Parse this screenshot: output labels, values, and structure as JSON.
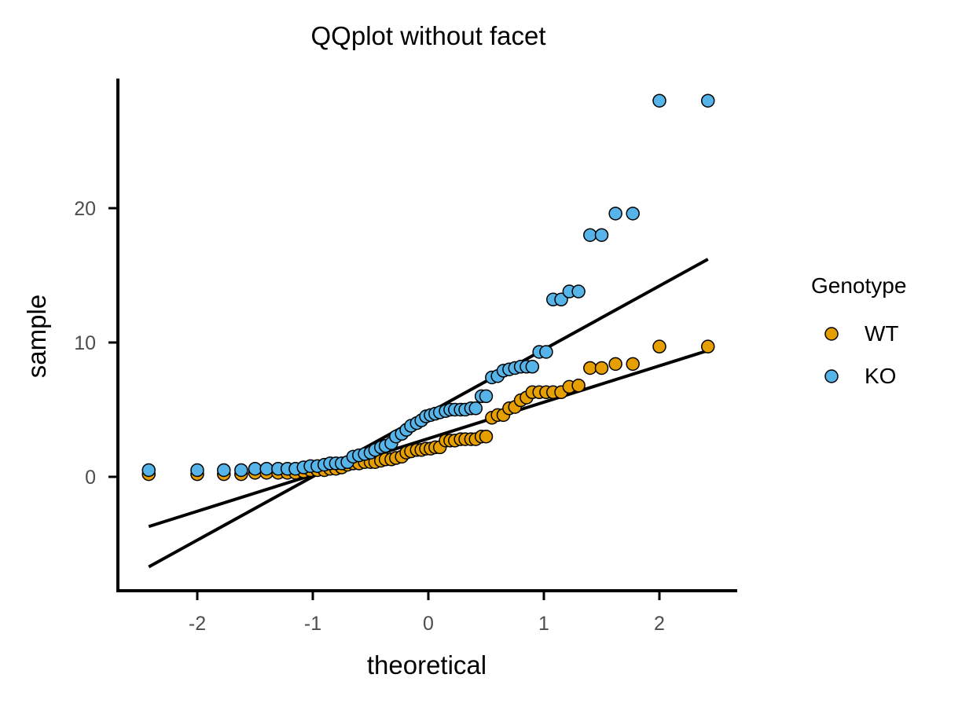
{
  "chart_data": {
    "type": "scatter",
    "title": "QQplot without facet",
    "xlabel": "theoretical",
    "ylabel": "sample",
    "xlim": [
      -2.7,
      2.7
    ],
    "ylim": [
      -8.5,
      29.5
    ],
    "x_ticks": [
      {
        "value": -2,
        "label": "-2"
      },
      {
        "value": -1,
        "label": "-1"
      },
      {
        "value": 0,
        "label": "0"
      },
      {
        "value": 1,
        "label": "1"
      },
      {
        "value": 2,
        "label": "2"
      }
    ],
    "y_ticks": [
      {
        "value": 0,
        "label": "0"
      },
      {
        "value": 10,
        "label": "10"
      },
      {
        "value": 20,
        "label": "20"
      }
    ],
    "grid": false,
    "legend": {
      "title": "Genotype",
      "position": "right"
    },
    "series": [
      {
        "name": "WT",
        "color": "#E69F00",
        "line": {
          "x": [
            -2.42,
            2.42
          ],
          "y": [
            -3.7,
            9.4
          ]
        },
        "x": [
          -2.42,
          -2.0,
          -1.77,
          -1.62,
          -1.5,
          -1.4,
          -1.3,
          -1.22,
          -1.15,
          -1.08,
          -1.02,
          -0.96,
          -0.9,
          -0.85,
          -0.8,
          -0.75,
          -0.7,
          -0.65,
          -0.6,
          -0.55,
          -0.5,
          -0.46,
          -0.41,
          -0.37,
          -0.32,
          -0.28,
          -0.23,
          -0.19,
          -0.15,
          -0.1,
          -0.06,
          -0.02,
          0.02,
          0.06,
          0.1,
          0.15,
          0.19,
          0.23,
          0.28,
          0.32,
          0.37,
          0.41,
          0.46,
          0.5,
          0.55,
          0.6,
          0.65,
          0.7,
          0.75,
          0.8,
          0.85,
          0.9,
          0.96,
          1.02,
          1.08,
          1.15,
          1.22,
          1.3,
          1.4,
          1.5,
          1.62,
          1.77,
          2.0,
          2.42
        ],
        "y": [
          0.2,
          0.2,
          0.2,
          0.2,
          0.3,
          0.3,
          0.3,
          0.3,
          0.3,
          0.4,
          0.5,
          0.5,
          0.5,
          0.6,
          0.6,
          0.7,
          0.9,
          1.0,
          1.0,
          1.1,
          1.1,
          1.1,
          1.2,
          1.3,
          1.3,
          1.4,
          1.5,
          1.8,
          1.9,
          2.0,
          2.0,
          2.1,
          2.1,
          2.2,
          2.2,
          2.7,
          2.7,
          2.7,
          2.8,
          2.8,
          2.8,
          2.8,
          3.0,
          3.0,
          4.4,
          4.6,
          4.6,
          5.1,
          5.2,
          5.7,
          5.9,
          6.3,
          6.3,
          6.3,
          6.3,
          6.3,
          6.7,
          6.8,
          8.1,
          8.1,
          8.4,
          8.4,
          9.7,
          9.7
        ]
      },
      {
        "name": "KO",
        "color": "#56B4E9",
        "line": {
          "x": [
            -2.42,
            2.42
          ],
          "y": [
            -6.7,
            16.2
          ]
        },
        "x": [
          -2.42,
          -2.0,
          -1.77,
          -1.62,
          -1.5,
          -1.4,
          -1.3,
          -1.22,
          -1.15,
          -1.08,
          -1.02,
          -0.96,
          -0.9,
          -0.85,
          -0.8,
          -0.75,
          -0.7,
          -0.65,
          -0.6,
          -0.55,
          -0.5,
          -0.46,
          -0.41,
          -0.37,
          -0.32,
          -0.28,
          -0.23,
          -0.19,
          -0.15,
          -0.1,
          -0.06,
          -0.02,
          0.02,
          0.06,
          0.1,
          0.15,
          0.19,
          0.23,
          0.28,
          0.32,
          0.37,
          0.41,
          0.46,
          0.5,
          0.55,
          0.6,
          0.65,
          0.7,
          0.75,
          0.8,
          0.85,
          0.9,
          0.96,
          1.02,
          1.08,
          1.15,
          1.22,
          1.3,
          1.4,
          1.5,
          1.62,
          1.77,
          2.0,
          2.42
        ],
        "y": [
          0.5,
          0.5,
          0.5,
          0.5,
          0.6,
          0.6,
          0.6,
          0.6,
          0.6,
          0.7,
          0.8,
          0.8,
          0.9,
          1.0,
          1.0,
          1.0,
          1.1,
          1.5,
          1.6,
          1.7,
          1.8,
          2.0,
          2.2,
          2.3,
          2.5,
          3.0,
          3.2,
          3.5,
          3.8,
          4.0,
          4.2,
          4.5,
          4.6,
          4.7,
          4.8,
          4.9,
          5.0,
          5.0,
          5.0,
          5.0,
          5.1,
          5.1,
          6.0,
          6.0,
          7.4,
          7.5,
          7.9,
          8.0,
          8.1,
          8.2,
          8.2,
          8.2,
          9.3,
          9.3,
          13.2,
          13.2,
          13.8,
          13.8,
          18.0,
          18.0,
          19.6,
          19.6,
          28.0,
          28.0
        ]
      }
    ]
  }
}
